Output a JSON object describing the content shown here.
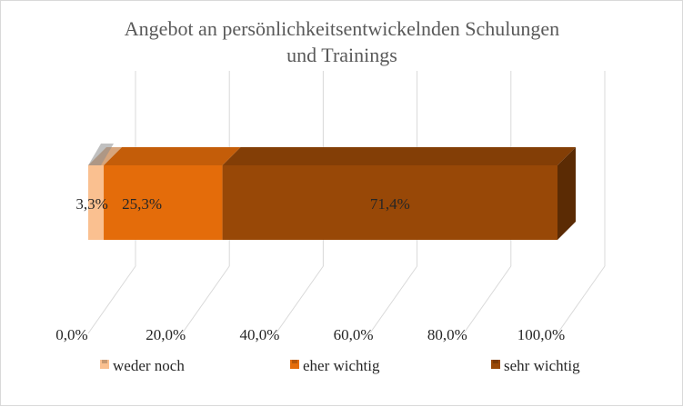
{
  "chart_data": {
    "type": "bar",
    "orientation": "horizontal",
    "stacked": true,
    "percent_stacked": true,
    "title": "Angebot an persönlichkeitsentwickelnden  Schulungen und Trainings",
    "title_lines": [
      "Angebot an persönlichkeitsentwickelnden  Schulungen",
      "und Trainings"
    ],
    "categories": [
      ""
    ],
    "series": [
      {
        "name": "weder noch",
        "values": [
          3.3
        ],
        "label": "3,3%",
        "color": "#fac090"
      },
      {
        "name": "eher wichtig",
        "values": [
          25.3
        ],
        "label": "25,3%",
        "color": "#e46c0a"
      },
      {
        "name": "sehr wichtig",
        "values": [
          71.4
        ],
        "label": "71,4%",
        "color": "#984807"
      }
    ],
    "x_ticks": [
      0,
      20,
      40,
      60,
      80,
      100
    ],
    "x_tick_labels": [
      "0,0%",
      "20,0%",
      "40,0%",
      "60,0%",
      "80,0%",
      "100,0%"
    ],
    "xlim": [
      0,
      100
    ],
    "grid": true,
    "legend_position": "bottom",
    "style": "3d"
  }
}
